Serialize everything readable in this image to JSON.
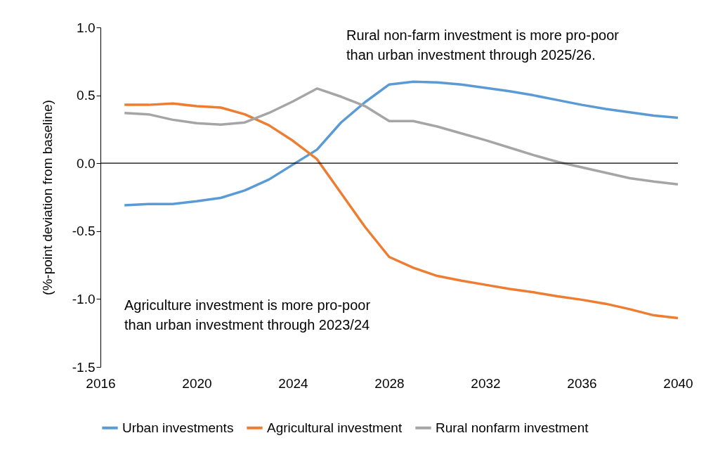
{
  "chart_data": {
    "type": "line",
    "ylabel": "(%-point deviation from baseline)",
    "x": [
      2017,
      2018,
      2019,
      2020,
      2021,
      2022,
      2023,
      2024,
      2025,
      2026,
      2027,
      2028,
      2029,
      2030,
      2031,
      2032,
      2033,
      2034,
      2035,
      2036,
      2037,
      2038,
      2039,
      2040
    ],
    "series": [
      {
        "name": "Urban investments",
        "color": "#5b9bd5",
        "values": [
          -0.31,
          -0.3,
          -0.3,
          -0.28,
          -0.255,
          -0.2,
          -0.12,
          -0.01,
          0.1,
          0.3,
          0.45,
          0.58,
          0.6,
          0.595,
          0.58,
          0.555,
          0.53,
          0.5,
          0.465,
          0.43,
          0.4,
          0.375,
          0.35,
          0.335
        ]
      },
      {
        "name": "Agricultural investment",
        "color": "#ed7d31",
        "values": [
          0.43,
          0.43,
          0.44,
          0.42,
          0.41,
          0.36,
          0.28,
          0.165,
          0.03,
          -0.22,
          -0.47,
          -0.69,
          -0.77,
          -0.83,
          -0.865,
          -0.895,
          -0.925,
          -0.95,
          -0.98,
          -1.005,
          -1.035,
          -1.075,
          -1.12,
          -1.14
        ]
      },
      {
        "name": "Rural nonfarm investment",
        "color": "#a5a5a5",
        "values": [
          0.37,
          0.36,
          0.32,
          0.295,
          0.285,
          0.3,
          0.37,
          0.455,
          0.55,
          0.49,
          0.42,
          0.31,
          0.31,
          0.27,
          0.22,
          0.17,
          0.115,
          0.06,
          0.01,
          -0.03,
          -0.07,
          -0.11,
          -0.135,
          -0.155
        ]
      }
    ],
    "xlim": [
      2016,
      2040
    ],
    "xticks": [
      2016,
      2020,
      2024,
      2028,
      2032,
      2036,
      2040
    ],
    "ylim": [
      -1.5,
      1.0
    ],
    "yticks": [
      {
        "value": -1.5,
        "label": "-1.5"
      },
      {
        "value": -1.0,
        "label": "-1.0"
      },
      {
        "value": -0.5,
        "label": "-0.5"
      },
      {
        "value": 0,
        "label": "0.0"
      },
      {
        "value": 0.5,
        "label": "0.5"
      },
      {
        "value": 1.0,
        "label": "1.0"
      }
    ],
    "ref_lines": [
      {
        "axis": "y",
        "value": 0,
        "color": "#000000"
      }
    ],
    "annotations": [
      "Rural non-farm investment is more pro-poor\nthan urban investment through 2025/26.",
      "Agriculture investment is more pro-poor\nthan urban investment through 2023/24"
    ],
    "grid": false,
    "legend": "bottom",
    "marker": "none",
    "line_style": "solid"
  }
}
